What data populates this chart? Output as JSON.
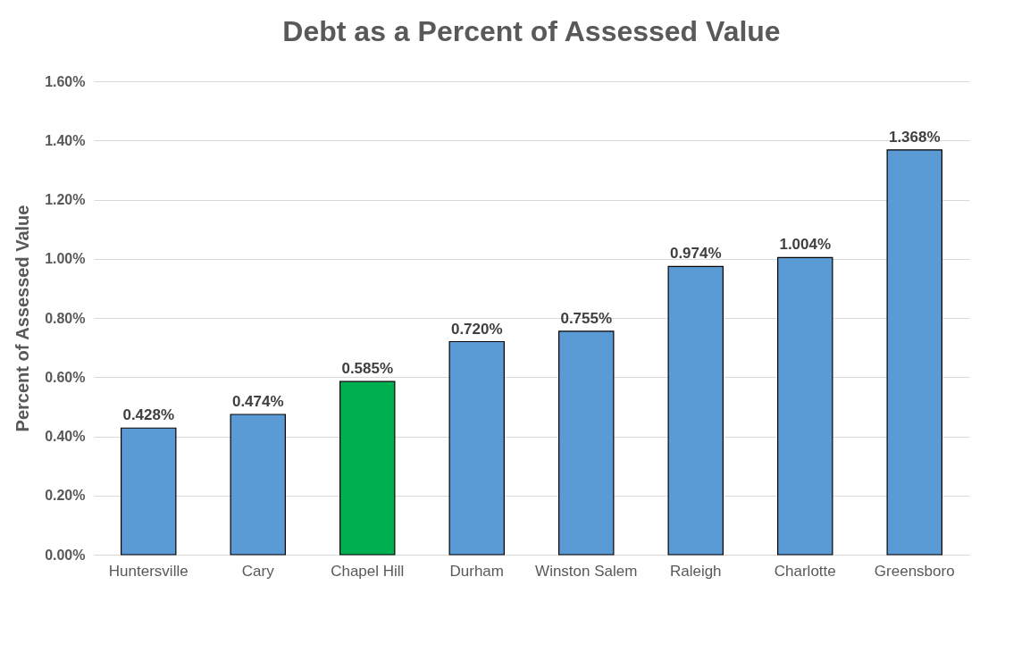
{
  "chart_data": {
    "type": "bar",
    "title": "Debt as a Percent of Assessed Value",
    "ylabel": "Percent of Assessed Value",
    "categories": [
      "Huntersville",
      "Cary",
      "Chapel Hill",
      "Durham",
      "Winston Salem",
      "Raleigh",
      "Charlotte",
      "Greensboro"
    ],
    "values": [
      0.428,
      0.474,
      0.585,
      0.72,
      0.755,
      0.974,
      1.004,
      1.368
    ],
    "colors": [
      "#5b9bd5",
      "#5b9bd5",
      "#00b050",
      "#5b9bd5",
      "#5b9bd5",
      "#5b9bd5",
      "#5b9bd5",
      "#5b9bd5"
    ],
    "value_labels": [
      "0.428%",
      "0.474%",
      "0.585%",
      "0.720%",
      "0.755%",
      "0.974%",
      "1.004%",
      "1.368%"
    ],
    "ylim": [
      0,
      1.6
    ],
    "yticks": [
      {
        "value": 0,
        "label": "0.00%"
      },
      {
        "value": 0.2,
        "label": "0.20%"
      },
      {
        "value": 0.4,
        "label": "0.40%"
      },
      {
        "value": 0.6,
        "label": "0.60%"
      },
      {
        "value": 0.8,
        "label": "0.80%"
      },
      {
        "value": 1.0,
        "label": "1.00%"
      },
      {
        "value": 1.2,
        "label": "1.20%"
      },
      {
        "value": 1.4,
        "label": "1.40%"
      },
      {
        "value": 1.6,
        "label": "1.60%"
      }
    ],
    "grid": "y"
  }
}
